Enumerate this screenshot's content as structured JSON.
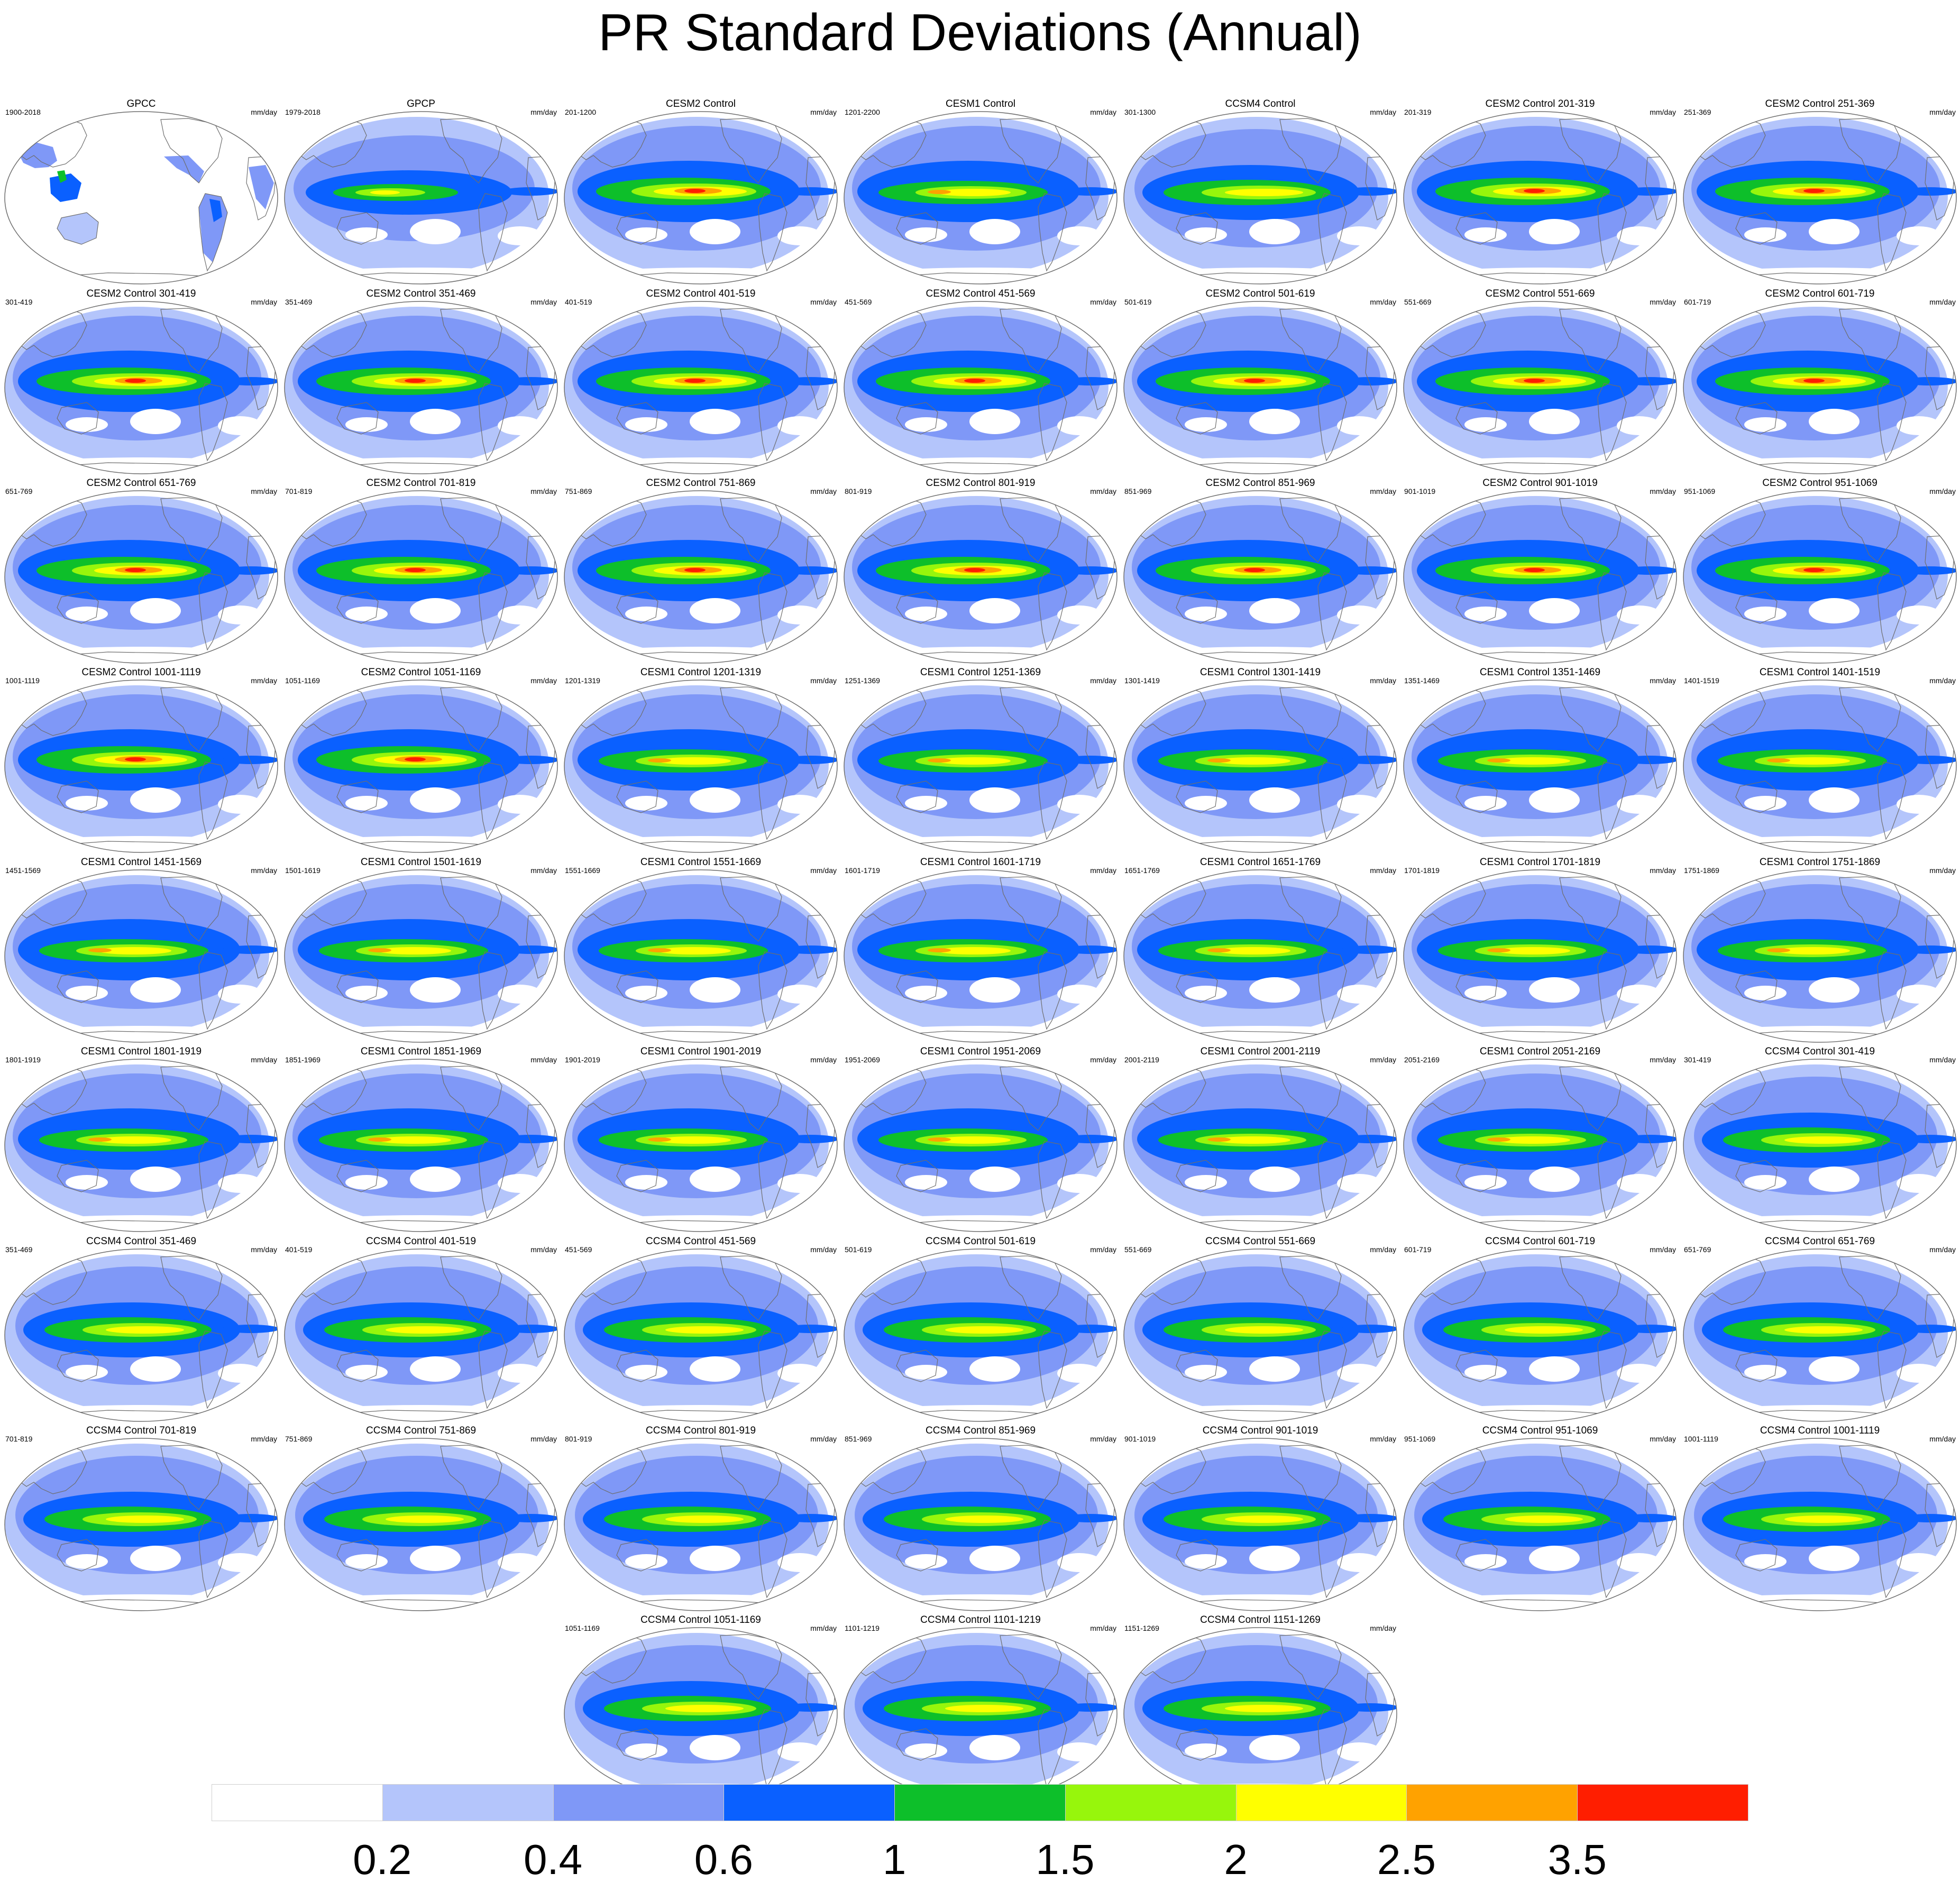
{
  "title": "PR Standard Deviations (Annual)",
  "units": "mm/day",
  "panels": [
    {
      "name": "GPCC",
      "years": "1900-2018",
      "type": "obs-land"
    },
    {
      "name": "GPCP",
      "years": "1979-2018",
      "type": "obs"
    },
    {
      "name": "CESM2 Control",
      "years": "201-1200",
      "type": "cesm2"
    },
    {
      "name": "CESM1 Control",
      "years": "1201-2200",
      "type": "cesm1"
    },
    {
      "name": "CCSM4 Control",
      "years": "301-1300",
      "type": "ccsm4"
    },
    {
      "name": "CESM2 Control 201-319",
      "years": "201-319",
      "type": "cesm2"
    },
    {
      "name": "CESM2 Control 251-369",
      "years": "251-369",
      "type": "cesm2"
    },
    {
      "name": "CESM2 Control 301-419",
      "years": "301-419",
      "type": "cesm2"
    },
    {
      "name": "CESM2 Control 351-469",
      "years": "351-469",
      "type": "cesm2"
    },
    {
      "name": "CESM2 Control 401-519",
      "years": "401-519",
      "type": "cesm2"
    },
    {
      "name": "CESM2 Control 451-569",
      "years": "451-569",
      "type": "cesm2"
    },
    {
      "name": "CESM2 Control 501-619",
      "years": "501-619",
      "type": "cesm2"
    },
    {
      "name": "CESM2 Control 551-669",
      "years": "551-669",
      "type": "cesm2"
    },
    {
      "name": "CESM2 Control 601-719",
      "years": "601-719",
      "type": "cesm2"
    },
    {
      "name": "CESM2 Control 651-769",
      "years": "651-769",
      "type": "cesm2"
    },
    {
      "name": "CESM2 Control 701-819",
      "years": "701-819",
      "type": "cesm2"
    },
    {
      "name": "CESM2 Control 751-869",
      "years": "751-869",
      "type": "cesm2"
    },
    {
      "name": "CESM2 Control 801-919",
      "years": "801-919",
      "type": "cesm2"
    },
    {
      "name": "CESM2 Control 851-969",
      "years": "851-969",
      "type": "cesm2"
    },
    {
      "name": "CESM2 Control 901-1019",
      "years": "901-1019",
      "type": "cesm2"
    },
    {
      "name": "CESM2 Control 951-1069",
      "years": "951-1069",
      "type": "cesm2"
    },
    {
      "name": "CESM2 Control 1001-1119",
      "years": "1001-1119",
      "type": "cesm2"
    },
    {
      "name": "CESM2 Control 1051-1169",
      "years": "1051-1169",
      "type": "cesm2"
    },
    {
      "name": "CESM1 Control 1201-1319",
      "years": "1201-1319",
      "type": "cesm1"
    },
    {
      "name": "CESM1 Control 1251-1369",
      "years": "1251-1369",
      "type": "cesm1"
    },
    {
      "name": "CESM1 Control 1301-1419",
      "years": "1301-1419",
      "type": "cesm1"
    },
    {
      "name": "CESM1 Control 1351-1469",
      "years": "1351-1469",
      "type": "cesm1"
    },
    {
      "name": "CESM1 Control 1401-1519",
      "years": "1401-1519",
      "type": "cesm1"
    },
    {
      "name": "CESM1 Control 1451-1569",
      "years": "1451-1569",
      "type": "cesm1"
    },
    {
      "name": "CESM1 Control 1501-1619",
      "years": "1501-1619",
      "type": "cesm1"
    },
    {
      "name": "CESM1 Control 1551-1669",
      "years": "1551-1669",
      "type": "cesm1"
    },
    {
      "name": "CESM1 Control 1601-1719",
      "years": "1601-1719",
      "type": "cesm1"
    },
    {
      "name": "CESM1 Control 1651-1769",
      "years": "1651-1769",
      "type": "cesm1"
    },
    {
      "name": "CESM1 Control 1701-1819",
      "years": "1701-1819",
      "type": "cesm1"
    },
    {
      "name": "CESM1 Control 1751-1869",
      "years": "1751-1869",
      "type": "cesm1"
    },
    {
      "name": "CESM1 Control 1801-1919",
      "years": "1801-1919",
      "type": "cesm1"
    },
    {
      "name": "CESM1 Control 1851-1969",
      "years": "1851-1969",
      "type": "cesm1"
    },
    {
      "name": "CESM1 Control 1901-2019",
      "years": "1901-2019",
      "type": "cesm1"
    },
    {
      "name": "CESM1 Control 1951-2069",
      "years": "1951-2069",
      "type": "cesm1"
    },
    {
      "name": "CESM1 Control 2001-2119",
      "years": "2001-2119",
      "type": "cesm1"
    },
    {
      "name": "CESM1 Control 2051-2169",
      "years": "2051-2169",
      "type": "cesm1"
    },
    {
      "name": "CCSM4 Control 301-419",
      "years": "301-419",
      "type": "ccsm4"
    },
    {
      "name": "CCSM4 Control 351-469",
      "years": "351-469",
      "type": "ccsm4"
    },
    {
      "name": "CCSM4 Control 401-519",
      "years": "401-519",
      "type": "ccsm4"
    },
    {
      "name": "CCSM4 Control 451-569",
      "years": "451-569",
      "type": "ccsm4"
    },
    {
      "name": "CCSM4 Control 501-619",
      "years": "501-619",
      "type": "ccsm4"
    },
    {
      "name": "CCSM4 Control 551-669",
      "years": "551-669",
      "type": "ccsm4"
    },
    {
      "name": "CCSM4 Control 601-719",
      "years": "601-719",
      "type": "ccsm4"
    },
    {
      "name": "CCSM4 Control 651-769",
      "years": "651-769",
      "type": "ccsm4"
    },
    {
      "name": "CCSM4 Control 701-819",
      "years": "701-819",
      "type": "ccsm4"
    },
    {
      "name": "CCSM4 Control 751-869",
      "years": "751-869",
      "type": "ccsm4"
    },
    {
      "name": "CCSM4 Control 801-919",
      "years": "801-919",
      "type": "ccsm4"
    },
    {
      "name": "CCSM4 Control 851-969",
      "years": "851-969",
      "type": "ccsm4"
    },
    {
      "name": "CCSM4 Control 901-1019",
      "years": "901-1019",
      "type": "ccsm4"
    },
    {
      "name": "CCSM4 Control 951-1069",
      "years": "951-1069",
      "type": "ccsm4"
    },
    {
      "name": "CCSM4 Control 1001-1119",
      "years": "1001-1119",
      "type": "ccsm4"
    },
    {
      "name": "CCSM4 Control 1051-1169",
      "years": "1051-1169",
      "type": "ccsm4"
    },
    {
      "name": "CCSM4 Control 1101-1219",
      "years": "1101-1219",
      "type": "ccsm4"
    },
    {
      "name": "CCSM4 Control 1151-1269",
      "years": "1151-1269",
      "type": "ccsm4"
    }
  ],
  "colorbar": {
    "labels": [
      "0.2",
      "0.4",
      "0.6",
      "1",
      "1.5",
      "2",
      "2.5",
      "3.5"
    ],
    "colors": [
      "#ffffff",
      "#b4c5fb",
      "#7f98f7",
      "#0a60ff",
      "#0dbf2a",
      "#97f60c",
      "#ffff00",
      "#ffa200",
      "#ff1e00"
    ]
  },
  "map_colors": {
    "ocean_background": "#ffffff",
    "coastline": "#6e6e6e",
    "map_outline": "#6e6e6e"
  }
}
